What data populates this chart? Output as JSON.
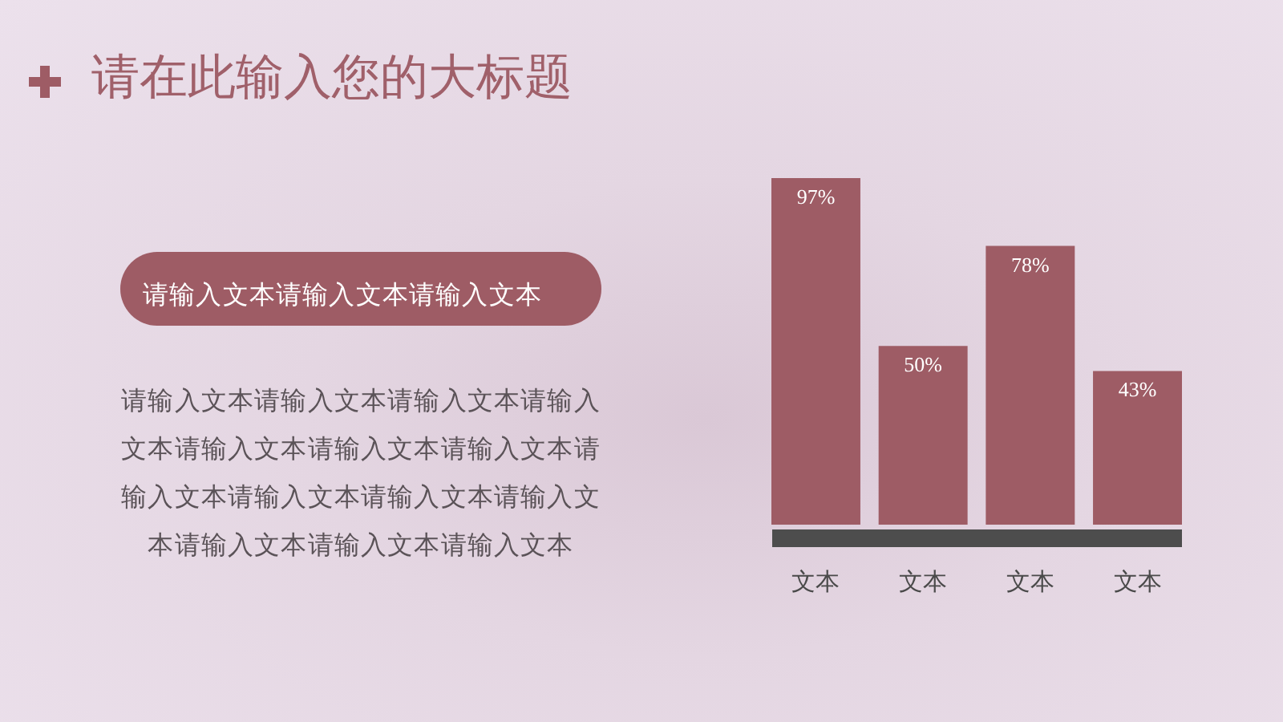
{
  "chart_data": {
    "type": "bar",
    "title": "请在此输入您的大标题",
    "categories": [
      "文本",
      "文本",
      "文本",
      "文本"
    ],
    "values": [
      97,
      50,
      78,
      43
    ],
    "value_labels": [
      "97%",
      "50%",
      "78%",
      "43%"
    ],
    "color": "#9e5c65",
    "tick_labels": "x",
    "annotations": [
      "请输入文本请输入文本请输入文本",
      "请输入文本请输入文本请输入文本请输入文本请输入文本请输入文本请输入文本请输入文本请输入文本请输入文本请输入文本请输入文本请输入文本请输入文本"
    ]
  }
}
